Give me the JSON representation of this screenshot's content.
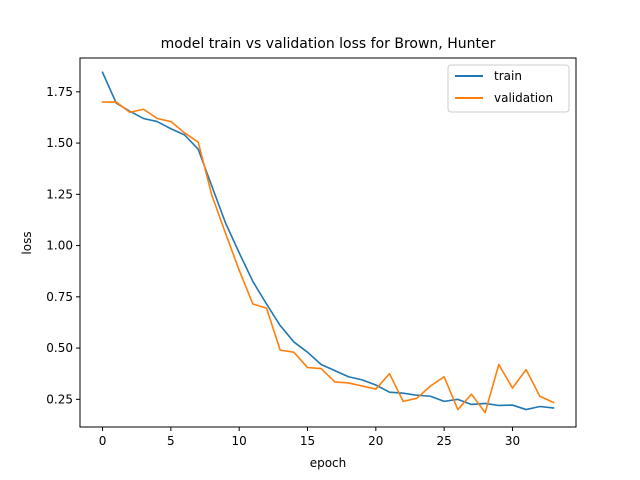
{
  "chart_data": {
    "type": "line",
    "title": "model train vs validation loss for Brown, Hunter",
    "xlabel": "epoch",
    "ylabel": "loss",
    "xlim": [
      -1.65,
      34.65
    ],
    "ylim": [
      0.115,
      1.915
    ],
    "xticks": [
      0,
      5,
      10,
      15,
      20,
      25,
      30
    ],
    "yticks": [
      0.25,
      0.5,
      0.75,
      1.0,
      1.25,
      1.5,
      1.75
    ],
    "ytick_labels": [
      "0.25",
      "0.50",
      "0.75",
      "1.00",
      "1.25",
      "1.50",
      "1.75"
    ],
    "grid": false,
    "legend_position": "top-right",
    "x": [
      0,
      1,
      2,
      3,
      4,
      5,
      6,
      7,
      8,
      9,
      10,
      11,
      12,
      13,
      14,
      15,
      16,
      17,
      18,
      19,
      20,
      21,
      22,
      23,
      24,
      25,
      26,
      27,
      28,
      29,
      30,
      31,
      32,
      33
    ],
    "series": [
      {
        "name": "train",
        "color": "#1f77b4",
        "values": [
          1.845,
          1.695,
          1.655,
          1.62,
          1.605,
          1.57,
          1.54,
          1.47,
          1.29,
          1.11,
          0.965,
          0.825,
          0.715,
          0.61,
          0.53,
          0.48,
          0.42,
          0.39,
          0.36,
          0.345,
          0.32,
          0.285,
          0.28,
          0.27,
          0.265,
          0.24,
          0.25,
          0.225,
          0.23,
          0.22,
          0.222,
          0.2,
          0.215,
          0.208
        ]
      },
      {
        "name": "validation",
        "color": "#ff7f0e",
        "values": [
          1.7,
          1.7,
          1.65,
          1.665,
          1.62,
          1.605,
          1.55,
          1.505,
          1.245,
          1.06,
          0.88,
          0.715,
          0.695,
          0.49,
          0.48,
          0.405,
          0.4,
          0.335,
          0.33,
          0.315,
          0.3,
          0.375,
          0.24,
          0.255,
          0.315,
          0.36,
          0.2,
          0.275,
          0.185,
          0.42,
          0.305,
          0.395,
          0.265,
          0.235
        ]
      }
    ]
  }
}
